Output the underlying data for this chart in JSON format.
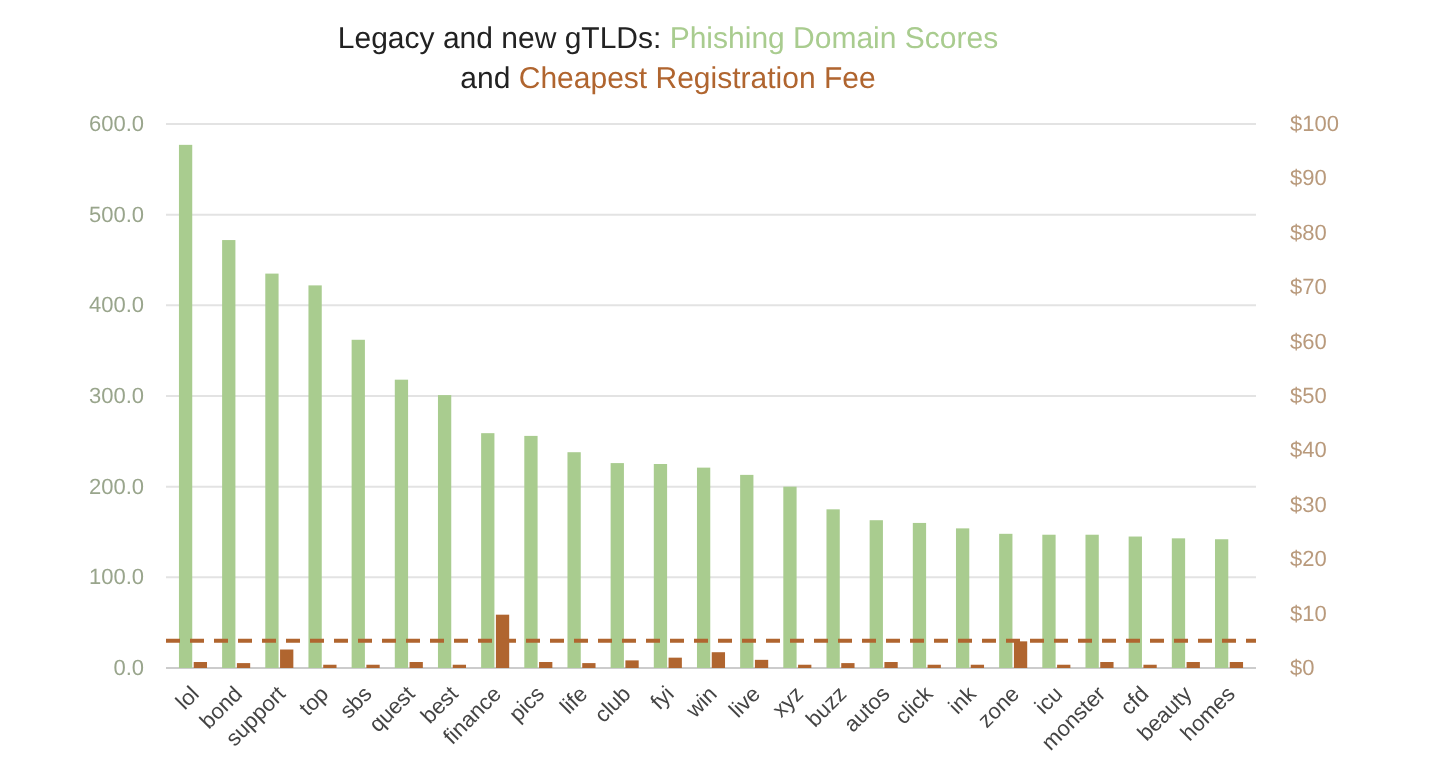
{
  "chart_data": {
    "type": "bar",
    "title": "Legacy and new gTLDs:",
    "annotations": [
      "and"
    ],
    "categories": [
      "lol",
      "bond",
      "support",
      "top",
      "sbs",
      "quest",
      "best",
      "finance",
      "pics",
      "life",
      "club",
      "fyi",
      "win",
      "live",
      "xyz",
      "buzz",
      "autos",
      "click",
      "ink",
      "zone",
      "icu",
      "monster",
      "cfd",
      "beauty",
      "homes"
    ],
    "series": [
      {
        "name": "Phishing Domain Scores",
        "color": "#a9cc8f",
        "values": [
          577,
          472,
          435,
          422,
          362,
          318,
          301,
          259,
          256,
          238,
          226,
          225,
          221,
          213,
          200,
          175,
          163,
          160,
          154,
          148,
          147,
          147,
          145,
          143,
          142
        ]
      },
      {
        "name": "Cheapest Registration Fee",
        "color": "#b0652f",
        "axis": "y2",
        "values": [
          1.1,
          0.9,
          3.4,
          0.6,
          0.6,
          1.1,
          0.6,
          9.8,
          1.1,
          0.9,
          1.4,
          1.9,
          2.9,
          1.5,
          0.6,
          0.9,
          1.1,
          0.6,
          0.6,
          4.9,
          0.6,
          1.1,
          0.6,
          1.1,
          1.1
        ]
      }
    ],
    "ylim": [
      0,
      600
    ],
    "yticks": [
      {
        "value": 0,
        "label": "0.0"
      },
      {
        "value": 100,
        "label": "100.0"
      },
      {
        "value": 200,
        "label": "200.0"
      },
      {
        "value": 300,
        "label": "300.0"
      },
      {
        "value": 400,
        "label": "400.0"
      },
      {
        "value": 500,
        "label": "500.0"
      },
      {
        "value": 600,
        "label": "600.0"
      }
    ],
    "y2lim": [
      0,
      100
    ],
    "y2ticks": [
      {
        "value": 0,
        "label": "$0"
      },
      {
        "value": 10,
        "label": "$10"
      },
      {
        "value": 20,
        "label": "$20"
      },
      {
        "value": 30,
        "label": "$30"
      },
      {
        "value": 40,
        "label": "$40"
      },
      {
        "value": 50,
        "label": "$50"
      },
      {
        "value": 60,
        "label": "$60"
      },
      {
        "value": 70,
        "label": "$70"
      },
      {
        "value": 80,
        "label": "$80"
      },
      {
        "value": 90,
        "label": "$90"
      },
      {
        "value": 100,
        "label": "$100"
      }
    ],
    "ref_lines": [
      {
        "axis": "y2",
        "value": 5,
        "color": "#b0652f",
        "line_style": "dashed"
      }
    ],
    "grid": "y",
    "legend": "top"
  }
}
